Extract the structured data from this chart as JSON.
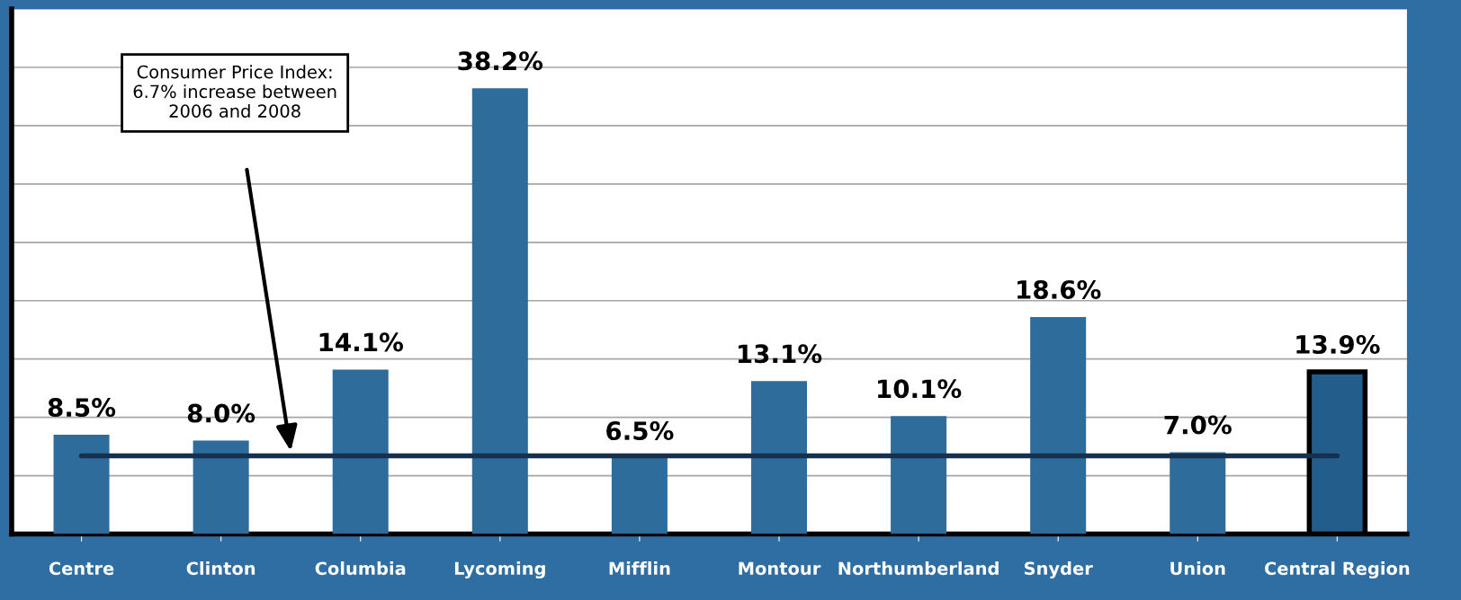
{
  "chart_data": {
    "type": "bar",
    "categories": [
      "Centre",
      "Clinton",
      "Columbia",
      "Lycoming",
      "Mifflin",
      "Montour",
      "Northumberland",
      "Snyder",
      "Union",
      "Central Region"
    ],
    "values": [
      8.5,
      8.0,
      14.1,
      38.2,
      6.5,
      13.1,
      10.1,
      18.6,
      7.0,
      13.9
    ],
    "colors": [
      "#2e6c9c",
      "#2e6c9c",
      "#2e6c9c",
      "#2e6c9c",
      "#2e6c9c",
      "#2e6c9c",
      "#2e6c9c",
      "#2e6c9c",
      "#2e6c9c",
      "#225d8c"
    ],
    "value_labels": [
      "8.5%",
      "8.0%",
      "14.1%",
      "38.2%",
      "6.5%",
      "13.1%",
      "10.1%",
      "18.6%",
      "7.0%",
      "13.9%"
    ],
    "ylim": [
      0,
      45
    ],
    "yticks": [
      {
        "value": 0,
        "label": null
      },
      {
        "value": 5,
        "label": null
      },
      {
        "value": 10,
        "label": null
      },
      {
        "value": 15,
        "label": null
      },
      {
        "value": 20,
        "label": null
      },
      {
        "value": 25,
        "label": null
      },
      {
        "value": 30,
        "label": null
      },
      {
        "value": 35,
        "label": null
      },
      {
        "value": 40,
        "label": null
      },
      {
        "value": 45,
        "label": null
      }
    ],
    "tick_labels": "x",
    "grid": "y",
    "ref_lines": [
      {
        "axis": "y",
        "value": 6.7,
        "color": "#17304f",
        "line_style": "solid"
      }
    ],
    "annotations": [
      "Consumer Price Index:\n6.7% increase between\n2006 and 2008"
    ]
  }
}
